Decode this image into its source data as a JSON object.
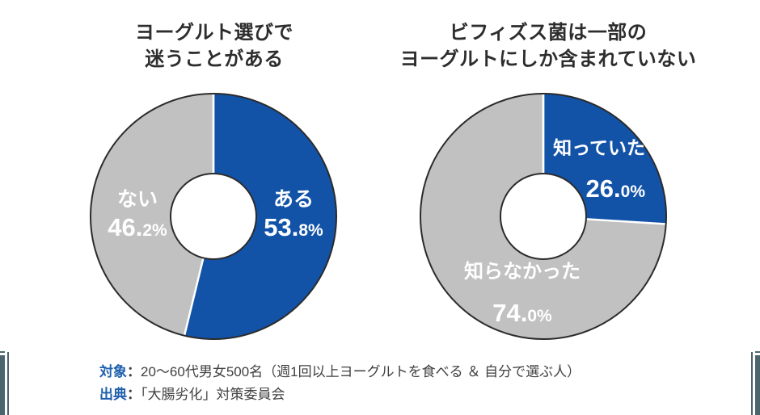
{
  "page": {
    "background": "#ffffff"
  },
  "style": {
    "accent_blue": "#1253a8",
    "slice_gray": "#c1c1c1",
    "outline": "#2b2b2b",
    "divider": "#ffffff",
    "hole_fill": "#ffffff",
    "label_text": "#ffffff",
    "title_color": "#2d2d2d",
    "note_label_color": "#1e5fad",
    "note_text_color": "#404040",
    "corner_bar_color": "#4b656e"
  },
  "chart_data": [
    {
      "type": "pie",
      "subtype": "donut",
      "title": "ヨーグルト選びで迷うことがある",
      "title_lines": [
        "ヨーグルト選びで",
        "迷うことがある"
      ],
      "labels": [
        "ある",
        "ない"
      ],
      "values": [
        53.8,
        46.2
      ],
      "unit": "%",
      "colors": [
        "#1253a8",
        "#c1c1c1"
      ],
      "start_angle_deg": -90,
      "direction": "clockwise",
      "legend_position": "on-slice",
      "value_display": [
        {
          "main": "53.",
          "sub": "8%"
        },
        {
          "main": "46.",
          "sub": "2%"
        }
      ]
    },
    {
      "type": "pie",
      "subtype": "donut",
      "title": "ビフィズス菌は一部のヨーグルトにしか含まれていない",
      "title_lines": [
        "ビフィズス菌は一部の",
        "ヨーグルトにしか含まれていない"
      ],
      "labels": [
        "知っていた",
        "知らなかった"
      ],
      "values": [
        26.0,
        74.0
      ],
      "unit": "%",
      "colors": [
        "#1253a8",
        "#c1c1c1"
      ],
      "start_angle_deg": -90,
      "direction": "clockwise",
      "legend_position": "on-slice",
      "value_display": [
        {
          "main": "26.",
          "sub": "0%"
        },
        {
          "main": "74.",
          "sub": "0%"
        }
      ]
    }
  ],
  "footer": {
    "notes": [
      {
        "label": "対象",
        "separator": "：",
        "text": "20〜60代男女500名（週1回以上ヨーグルトを食べる ＆ 自分で選ぶ人）"
      },
      {
        "label": "出典",
        "separator": "：",
        "text": "「大腸劣化」対策委員会"
      }
    ]
  }
}
